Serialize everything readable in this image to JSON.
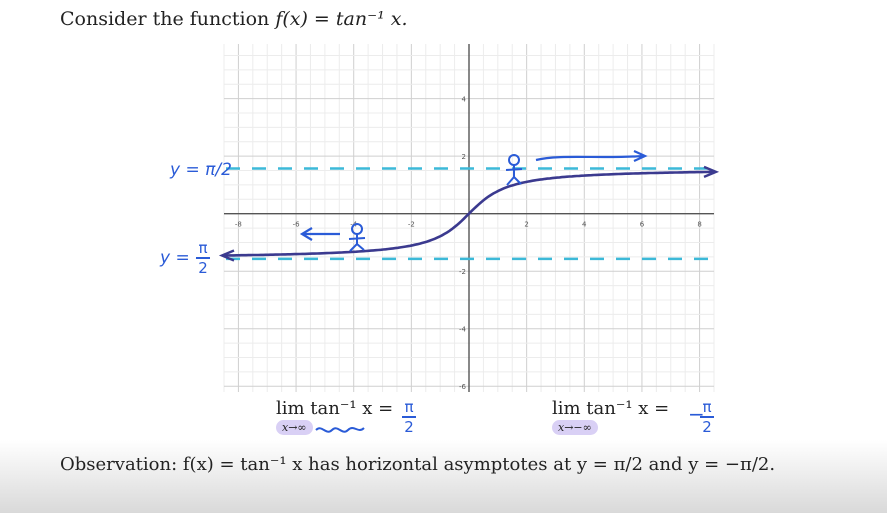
{
  "prompt": {
    "prefix": "Consider the function ",
    "formula": "f(x) = tan⁻¹ x."
  },
  "chart_data": {
    "type": "line",
    "xlim": [
      -8.5,
      8.5
    ],
    "ylim": [
      -6.2,
      5.9
    ],
    "grid": true,
    "x_ticks": [
      -8,
      -6,
      -4,
      -2,
      2,
      4,
      6,
      8
    ],
    "y_ticks": [
      -6,
      -4,
      -2,
      2,
      4
    ],
    "x_tick_labels": [
      "-8",
      "-6",
      "-4",
      "-2",
      "2",
      "4",
      "6",
      "8"
    ],
    "y_tick_labels": [
      "-6",
      "-4",
      "-2",
      "2",
      "4"
    ],
    "series": [
      {
        "x": [
          -8.5,
          -7,
          -6,
          -5,
          -4,
          -3,
          -2.5,
          -2,
          -1.5,
          -1,
          -0.5,
          0,
          0.5,
          1,
          1.5,
          2,
          2.5,
          3,
          4,
          5,
          6,
          7,
          8.5
        ],
        "y": [
          -1.454,
          -1.429,
          -1.406,
          -1.373,
          -1.326,
          -1.249,
          -1.19,
          -1.107,
          -0.983,
          -0.785,
          -0.464,
          0,
          0.464,
          0.785,
          0.983,
          1.107,
          1.19,
          1.249,
          1.326,
          1.373,
          1.406,
          1.429,
          1.454
        ],
        "color": "#3b3a8f"
      }
    ],
    "asymptotes": [
      {
        "y": 1.5708,
        "label": "y = π/2"
      },
      {
        "y": -1.5708,
        "label": "y = -π/2"
      }
    ],
    "asymptote_color": "#3cb9d8",
    "annotation_color": "#2a5bd7"
  },
  "handwriting": {
    "upper_asymptote": "y = π/2",
    "lower_asymptote": "y = -",
    "lower_pi": "π",
    "lower_two": "2"
  },
  "limits": {
    "left": {
      "main": "lim tan⁻¹ x =",
      "sub": "x→∞",
      "num": "π",
      "den": "2"
    },
    "right": {
      "main": "lim tan⁻¹ x =",
      "sub": "x→−∞",
      "sign": "−",
      "num": "π",
      "den": "2"
    }
  },
  "observation": "Observation: f(x) = tan⁻¹ x has horizontal asymptotes at y = π/2 and y = −π/2."
}
